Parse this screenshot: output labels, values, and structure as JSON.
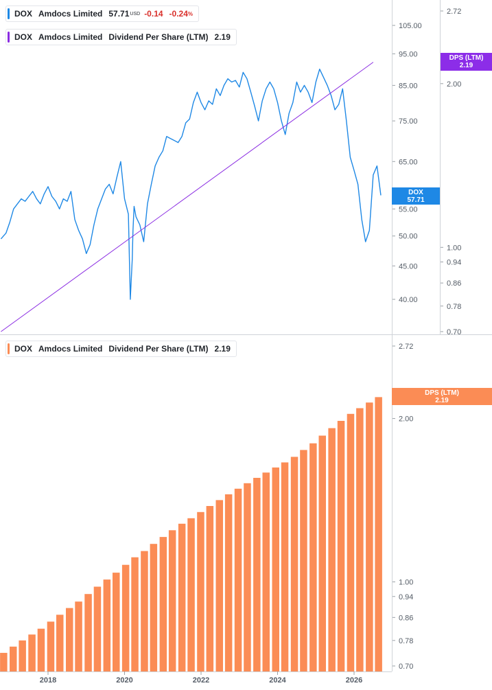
{
  "colors": {
    "price": "#1e88e5",
    "dps_line": "#8a2be2",
    "dps_tag": "#8c2de8",
    "bars": "#fb8c55",
    "bar_tag": "#fb8c55",
    "axis_text": "#545c66",
    "neg": "#d9302b"
  },
  "legends": {
    "price": {
      "ticker": "DOX",
      "company": "Amdocs Limited",
      "price": "57.71",
      "currency": "USD",
      "change": "-0.14",
      "change_pct": "-0.24",
      "pct_sign": "%"
    },
    "dps_top": {
      "ticker": "DOX",
      "company": "Amdocs Limited",
      "metric": "Dividend Per Share (LTM)",
      "value": "2.19"
    },
    "dps_bottom": {
      "ticker": "DOX",
      "company": "Amdocs Limited",
      "metric": "Dividend Per Share (LTM)",
      "value": "2.19"
    }
  },
  "tags": {
    "price": {
      "label": "DOX",
      "value": "57.71"
    },
    "dps_top": {
      "label": "DPS (LTM)",
      "value": "2.19"
    },
    "dps_bottom": {
      "label": "DPS (LTM)",
      "value": "2.19"
    }
  },
  "chart_data": [
    {
      "type": "line",
      "panel": "top",
      "title": "",
      "xlabel": "",
      "ylabel": "",
      "y_scale": "log",
      "y_ticks": [
        "105.00",
        "95.00",
        "85.00",
        "75.00",
        "65.00",
        "55.00",
        "50.00",
        "45.00",
        "40.00"
      ],
      "y2_scale": "log",
      "y2_ticks": [
        "2.72",
        "2.00",
        "1.00",
        "0.94",
        "0.86",
        "0.78",
        "0.70"
      ],
      "series": [
        {
          "name": "DOX",
          "axis": "left",
          "x": [
            2016.77,
            2016.9,
            2017.0,
            2017.1,
            2017.2,
            2017.3,
            2017.4,
            2017.5,
            2017.6,
            2017.7,
            2017.8,
            2017.9,
            2018.0,
            2018.1,
            2018.2,
            2018.3,
            2018.4,
            2018.5,
            2018.6,
            2018.7,
            2018.8,
            2018.9,
            2019.0,
            2019.1,
            2019.2,
            2019.3,
            2019.4,
            2019.5,
            2019.6,
            2019.7,
            2019.8,
            2019.9,
            2020.0,
            2020.1,
            2020.15,
            2020.2,
            2020.22,
            2020.25,
            2020.3,
            2020.4,
            2020.5,
            2020.6,
            2020.7,
            2020.8,
            2020.9,
            2021.0,
            2021.1,
            2021.2,
            2021.3,
            2021.4,
            2021.5,
            2021.6,
            2021.7,
            2021.8,
            2021.9,
            2022.0,
            2022.1,
            2022.2,
            2022.3,
            2022.4,
            2022.5,
            2022.6,
            2022.7,
            2022.8,
            2022.9,
            2023.0,
            2023.1,
            2023.2,
            2023.3,
            2023.4,
            2023.5,
            2023.6,
            2023.7,
            2023.8,
            2023.9,
            2024.0,
            2024.1,
            2024.2,
            2024.3,
            2024.4,
            2024.5,
            2024.6,
            2024.7,
            2024.8,
            2024.9,
            2025.0,
            2025.1,
            2025.2,
            2025.3,
            2025.4,
            2025.5,
            2025.6,
            2025.7,
            2025.8,
            2025.9,
            2026.0,
            2026.1,
            2026.2,
            2026.3,
            2026.4,
            2026.5,
            2026.6,
            2026.7
          ],
          "values": [
            49.5,
            50.5,
            52.5,
            55.0,
            56.0,
            57.0,
            56.5,
            57.5,
            58.5,
            57.0,
            56.0,
            58.0,
            59.5,
            57.5,
            56.5,
            55.0,
            57.0,
            56.5,
            58.5,
            53.0,
            51.0,
            49.5,
            47.0,
            48.5,
            52.0,
            55.0,
            57.0,
            59.0,
            60.0,
            58.0,
            61.5,
            65.0,
            57.0,
            54.0,
            40.0,
            46.0,
            51.0,
            55.5,
            53.5,
            52.0,
            49.0,
            56.0,
            60.0,
            64.0,
            66.0,
            67.5,
            71.0,
            70.5,
            70.0,
            69.5,
            71.0,
            74.5,
            75.5,
            80.0,
            83.0,
            80.0,
            78.0,
            80.5,
            79.5,
            84.0,
            82.0,
            85.0,
            87.0,
            86.0,
            86.5,
            84.5,
            89.0,
            87.0,
            83.0,
            79.0,
            75.0,
            80.5,
            84.0,
            86.0,
            84.0,
            80.0,
            75.0,
            71.5,
            77.0,
            80.0,
            86.0,
            83.0,
            85.0,
            83.0,
            80.0,
            86.0,
            90.0,
            87.5,
            85.0,
            82.0,
            78.0,
            79.5,
            84.0,
            75.0,
            66.0,
            63.0,
            60.0,
            53.0,
            49.0,
            51.0,
            62.0,
            64.0,
            57.71
          ]
        },
        {
          "name": "DPS (LTM)",
          "axis": "right",
          "x": [
            2016.77,
            2026.5
          ],
          "values": [
            0.7,
            2.19
          ]
        }
      ]
    },
    {
      "type": "bar",
      "panel": "bottom",
      "title": "",
      "xlabel": "",
      "ylabel": "",
      "y_scale": "log",
      "y_ticks": [
        "2.72",
        "2.00",
        "1.00",
        "0.94",
        "0.86",
        "0.78",
        "0.70"
      ],
      "x_ticks": [
        "2018",
        "2020",
        "2022",
        "2024",
        "2026"
      ],
      "x_tick_values": [
        2018,
        2020,
        2022,
        2024,
        2026
      ],
      "series": [
        {
          "name": "DPS (LTM)",
          "x": [
            2016.84,
            2017.09,
            2017.33,
            2017.58,
            2017.82,
            2018.07,
            2018.31,
            2018.56,
            2018.8,
            2019.05,
            2019.29,
            2019.54,
            2019.78,
            2020.03,
            2020.27,
            2020.52,
            2020.76,
            2021.01,
            2021.25,
            2021.5,
            2021.74,
            2021.99,
            2022.23,
            2022.48,
            2022.72,
            2022.97,
            2023.21,
            2023.46,
            2023.7,
            2023.95,
            2024.19,
            2024.44,
            2024.68,
            2024.93,
            2025.17,
            2025.42,
            2025.66,
            2025.91,
            2026.15,
            2026.4,
            2026.64
          ],
          "values": [
            0.74,
            0.76,
            0.78,
            0.8,
            0.82,
            0.845,
            0.87,
            0.895,
            0.92,
            0.95,
            0.98,
            1.01,
            1.04,
            1.075,
            1.11,
            1.14,
            1.175,
            1.21,
            1.245,
            1.28,
            1.31,
            1.345,
            1.38,
            1.415,
            1.45,
            1.485,
            1.52,
            1.555,
            1.59,
            1.625,
            1.66,
            1.7,
            1.75,
            1.8,
            1.86,
            1.92,
            1.98,
            2.04,
            2.09,
            2.14,
            2.19
          ]
        }
      ]
    }
  ]
}
